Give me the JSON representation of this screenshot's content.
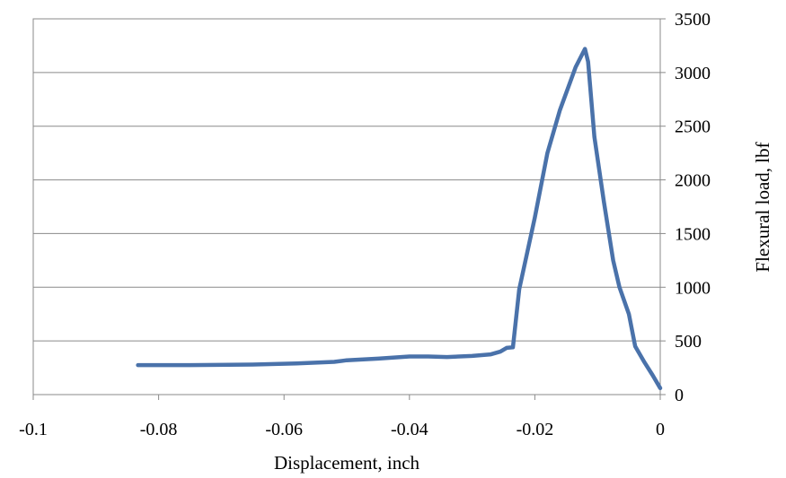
{
  "chart_data": {
    "type": "line",
    "title": "",
    "xlabel": "Displacement, inch",
    "ylabel": "Flexural load, lbf",
    "xlim": [
      -0.1,
      0
    ],
    "ylim": [
      0,
      3500
    ],
    "x_ticks": [
      -0.1,
      -0.08,
      -0.06,
      -0.04,
      -0.02,
      0
    ],
    "x_tick_labels": [
      "-0.1",
      "-0.08",
      "-0.06",
      "-0.04",
      "-0.02",
      "0"
    ],
    "y_ticks": [
      0,
      500,
      1000,
      1500,
      2000,
      2500,
      3000,
      3500
    ],
    "y_tick_labels": [
      "0",
      "500",
      "1000",
      "1500",
      "2000",
      "2500",
      "3000",
      "3500"
    ],
    "y_axis_side": "right",
    "grid": "horizontal",
    "legend": "none",
    "colors": {
      "series": "#4a72aa",
      "grid": "#8a8a8a"
    },
    "series": [
      {
        "x": [
          -0.0833,
          -0.075,
          -0.065,
          -0.058,
          -0.052,
          -0.05,
          -0.045,
          -0.04,
          -0.037,
          -0.034,
          -0.03,
          -0.027,
          -0.0255,
          -0.0245,
          -0.0235,
          -0.0225,
          -0.02,
          -0.018,
          -0.016,
          -0.0135,
          -0.012,
          -0.0115,
          -0.0105,
          -0.009,
          -0.0075,
          -0.0065,
          -0.005,
          -0.004,
          -0.0025,
          -0.0012,
          0
        ],
        "y": [
          275,
          275,
          280,
          290,
          305,
          320,
          335,
          355,
          355,
          350,
          360,
          375,
          400,
          435,
          440,
          980,
          1650,
          2250,
          2650,
          3050,
          3220,
          3100,
          2400,
          1800,
          1250,
          1000,
          750,
          450,
          300,
          180,
          60
        ]
      }
    ]
  }
}
